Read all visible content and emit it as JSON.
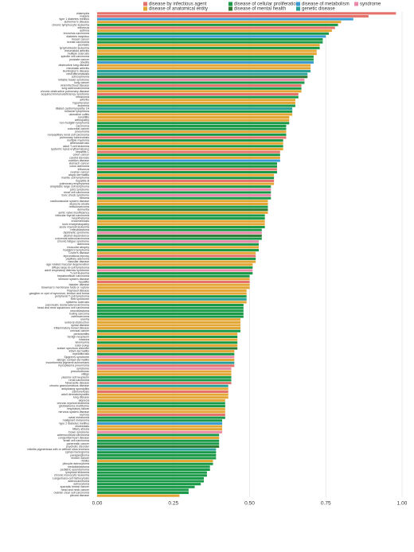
{
  "chart_data": {
    "type": "barh",
    "legend": [
      {
        "name": "disease by infectious agent",
        "color": "#e5736c"
      },
      {
        "name": "disease of anatomical entity",
        "color": "#e3a534"
      },
      {
        "name": "disease of cellular proliferation",
        "color": "#1a9a48"
      },
      {
        "name": "disease of mental health",
        "color": "#2e7d32"
      },
      {
        "name": "disease of metabolism",
        "color": "#3a9bd5"
      },
      {
        "name": "genetic disease",
        "color": "#2aa198"
      },
      {
        "name": "syndrome",
        "color": "#e88aa8"
      }
    ],
    "categories": [
      "chlamydia",
      "malaria",
      "type 1 diabetes mellitus",
      "alzheimer's disease",
      "chronic lymphocytic leukemia",
      "influenza",
      "asthma",
      "bronchus carcinoma",
      "diabetes insipidus",
      "breast cancer",
      "breast carcinoma",
      "psoriasis",
      "lymphoblastic leukemia",
      "rheumatoid arthritis",
      "multiple sclerosis",
      "spindle cell carcinoma",
      "prostate cancer",
      "obesity",
      "obstructive lung disease",
      "rheumatic arthritis",
      "Huntington's disease",
      "neurofibromatosis",
      "schizophrenia",
      "irritable bowel syndrome",
      "lung cancer",
      "viral infectious disease",
      "lung adenocarcinoma",
      "chronic obstructive pulmonary disease",
      "acquired immunodeficiency syndrome",
      "melanoma",
      "arthritis",
      "hypertension",
      "leukemia",
      "dilated cardiomyopathy 1A",
      "follicular lymphoma",
      "ulcerative colitis",
      "tonsillitis",
      "arthropathy",
      "non-hodgkin lymphoma",
      "carcinoma",
      "colorectal cancer",
      "pneumonia",
      "nonpapillary renal cell carcinoma",
      "pulmonary tuberculosis",
      "multiple myeloma",
      "atherosclerosis",
      "adult T-cell leukemia",
      "systemic lupus erythematosus",
      "hepatitis C",
      "colon cancer",
      "carotid stenosis",
      "nutrition disease",
      "stomach cancer",
      "colon adenoma",
      "influenza",
      "ovarian cancer",
      "atopic dermatitis",
      "mantle cell lymphoma",
      "hepatitis B",
      "pulmonary emphysema",
      "anaplastic large cell lymphoma",
      "job's syndrome",
      "renal cell carcinoma",
      "toxic shock syndrome",
      "fibroma",
      "cardiovascular system disease",
      "alopecia areata",
      "reticulosarcoma",
      "dementia",
      "aortic valve insufficiency",
      "follicular thyroid carcinoma",
      "mesothelioma",
      "endometriosis",
      "toxic encephalopathy",
      "acute myeloid leukemia",
      "retinoblastoma",
      "dyskinetic syndrome",
      "alcohol dependence",
      "colorectal adenocarcinoma",
      "chronic fatigue syndrome",
      "adenoma",
      "muscular atrophy",
      "hodgkin's lymphoma",
      "Crohn's disease",
      "lepromatous leprosy",
      "papillary adenoma",
      "vascular disease",
      "age related macular degeneration",
      "diffuse large B-cell lymphoma",
      "adult respiratory distress syndrome",
      "T-cell leukemia",
      "hepatocellular carcinoma",
      "immune system disease",
      "hepatitis",
      "bladder disease",
      "Bowman's membrane folds or rupture",
      "Raynaud disease",
      "ganglion or cyst of synovium, tendon and bursa",
      "peripheral T-cell lymphoma",
      "Rett syndrome",
      "systemic sclerosis",
      "pancreatic ductal adenocarcinoma",
      "head and neck squamous cell carcinoma",
      "neuroblastoma",
      "Ewing sarcoma",
      "osteosarcoma",
      "uremia",
      "ureteral obstruction",
      "spinal disease",
      "inflammatory bowel disease",
      "cervical cancer",
      "periodontitis",
      "benign neoplasm",
      "rosacea",
      "leiomyoma",
      "colon polyp",
      "autism spectrum disorder",
      "infant dermatitis",
      "myelofibrosis",
      "Sjogren's syndrome",
      "allergic contact dermatitis",
      "incontinentia pigmenti achromians",
      "mycoplasma pneumonia",
      "syndrome",
      "pneumothorax",
      "vitiligo",
      "plasma cell neoplasm",
      "renal carcinoma",
      "Newcastle disease",
      "chronic granulomatous disease",
      "ankylosing spondylitis",
      "salmonellosis",
      "adult dermatomyositis",
      "lung disease",
      "alopecia",
      "chronic myeloid leukemia",
      "glioblastoma multiforme",
      "respiratory failure",
      "nervous system disease",
      "leprosy",
      "uveal melanoma",
      "malignant melanoma",
      "type 2 diabetes mellitus",
      "cholestasis",
      "biliary atresia",
      "Down syndrome",
      "adrenocortical carcinoma",
      "congenital heart disease",
      "small cell carcinoma",
      "pancreatic cancer",
      "psychotic disorder",
      "retinitis pigmentosa with or without situs inversus",
      "spinal meningioma",
      "paraganglioma",
      "rectum cancer",
      "rhinitis",
      "pilocytic astrocytoma",
      "medulloblastoma",
      "pediatric ependymoma",
      "lymphoid leukemia",
      "chronic monocytic leukemia",
      "Langerhans-cell histiocytosis",
      "adenocarcinoma",
      "astrocytoma",
      "sporadic breast cancer",
      "head and neck cancer",
      "ovarian clear cell carcinoma",
      "pleural disease"
    ],
    "values": [
      0.98,
      0.89,
      0.84,
      0.8,
      0.79,
      0.78,
      0.77,
      0.76,
      0.75,
      0.74,
      0.74,
      0.73,
      0.73,
      0.72,
      0.72,
      0.71,
      0.71,
      0.71,
      0.7,
      0.7,
      0.7,
      0.69,
      0.69,
      0.68,
      0.68,
      0.67,
      0.67,
      0.67,
      0.66,
      0.66,
      0.65,
      0.65,
      0.65,
      0.64,
      0.64,
      0.64,
      0.63,
      0.63,
      0.63,
      0.62,
      0.62,
      0.62,
      0.62,
      0.62,
      0.61,
      0.61,
      0.61,
      0.61,
      0.6,
      0.6,
      0.6,
      0.6,
      0.59,
      0.59,
      0.59,
      0.59,
      0.58,
      0.58,
      0.58,
      0.58,
      0.57,
      0.57,
      0.57,
      0.57,
      0.57,
      0.56,
      0.56,
      0.56,
      0.56,
      0.56,
      0.55,
      0.55,
      0.55,
      0.55,
      0.55,
      0.54,
      0.54,
      0.54,
      0.54,
      0.53,
      0.53,
      0.53,
      0.53,
      0.52,
      0.52,
      0.52,
      0.52,
      0.51,
      0.51,
      0.51,
      0.51,
      0.5,
      0.5,
      0.5,
      0.5,
      0.5,
      0.49,
      0.49,
      0.49,
      0.49,
      0.49,
      0.48,
      0.48,
      0.48,
      0.48,
      0.48,
      0.47,
      0.47,
      0.47,
      0.47,
      0.47,
      0.46,
      0.46,
      0.46,
      0.46,
      0.46,
      0.46,
      0.45,
      0.45,
      0.45,
      0.45,
      0.45,
      0.45,
      0.44,
      0.44,
      0.44,
      0.44,
      0.44,
      0.44,
      0.43,
      0.43,
      0.43,
      0.43,
      0.43,
      0.42,
      0.42,
      0.42,
      0.42,
      0.42,
      0.42,
      0.42,
      0.41,
      0.41,
      0.41,
      0.41,
      0.41,
      0.4,
      0.4,
      0.4,
      0.4,
      0.4,
      0.39,
      0.39,
      0.39,
      0.39,
      0.38,
      0.38,
      0.37,
      0.37,
      0.36,
      0.36,
      0.35,
      0.35,
      0.34,
      0.32,
      0.3,
      0.3,
      0.27
    ],
    "groups": [
      0,
      0,
      4,
      1,
      2,
      0,
      1,
      2,
      4,
      2,
      2,
      1,
      2,
      1,
      1,
      2,
      2,
      4,
      1,
      1,
      5,
      5,
      3,
      6,
      2,
      0,
      2,
      1,
      0,
      2,
      1,
      1,
      2,
      5,
      2,
      1,
      1,
      1,
      2,
      2,
      2,
      1,
      2,
      0,
      2,
      1,
      2,
      1,
      0,
      2,
      1,
      4,
      2,
      2,
      0,
      2,
      1,
      2,
      0,
      1,
      2,
      6,
      2,
      6,
      2,
      1,
      1,
      2,
      3,
      1,
      2,
      2,
      1,
      1,
      2,
      2,
      6,
      3,
      2,
      6,
      2,
      1,
      2,
      1,
      0,
      2,
      1,
      1,
      2,
      6,
      2,
      2,
      1,
      0,
      1,
      1,
      1,
      1,
      2,
      5,
      1,
      2,
      2,
      2,
      2,
      2,
      1,
      1,
      1,
      1,
      2,
      1,
      2,
      1,
      2,
      1,
      3,
      1,
      2,
      6,
      1,
      5,
      0,
      6,
      1,
      1,
      2,
      2,
      0,
      5,
      1,
      0,
      1,
      1,
      1,
      2,
      2,
      1,
      1,
      0,
      2,
      2,
      4,
      1,
      1,
      6,
      2,
      1,
      2,
      2,
      3,
      5,
      2,
      2,
      2,
      1,
      2,
      2,
      2,
      2,
      2,
      2,
      2,
      2,
      2,
      2,
      2,
      1
    ],
    "xlim": [
      0,
      1
    ],
    "xticks": [
      {
        "value": 0,
        "label": "0.00"
      },
      {
        "value": 0.25,
        "label": "0.25"
      },
      {
        "value": 0.5,
        "label": "0.50"
      },
      {
        "value": 0.75,
        "label": "0.75"
      },
      {
        "value": 1,
        "label": "1.00"
      }
    ],
    "grid": true
  }
}
